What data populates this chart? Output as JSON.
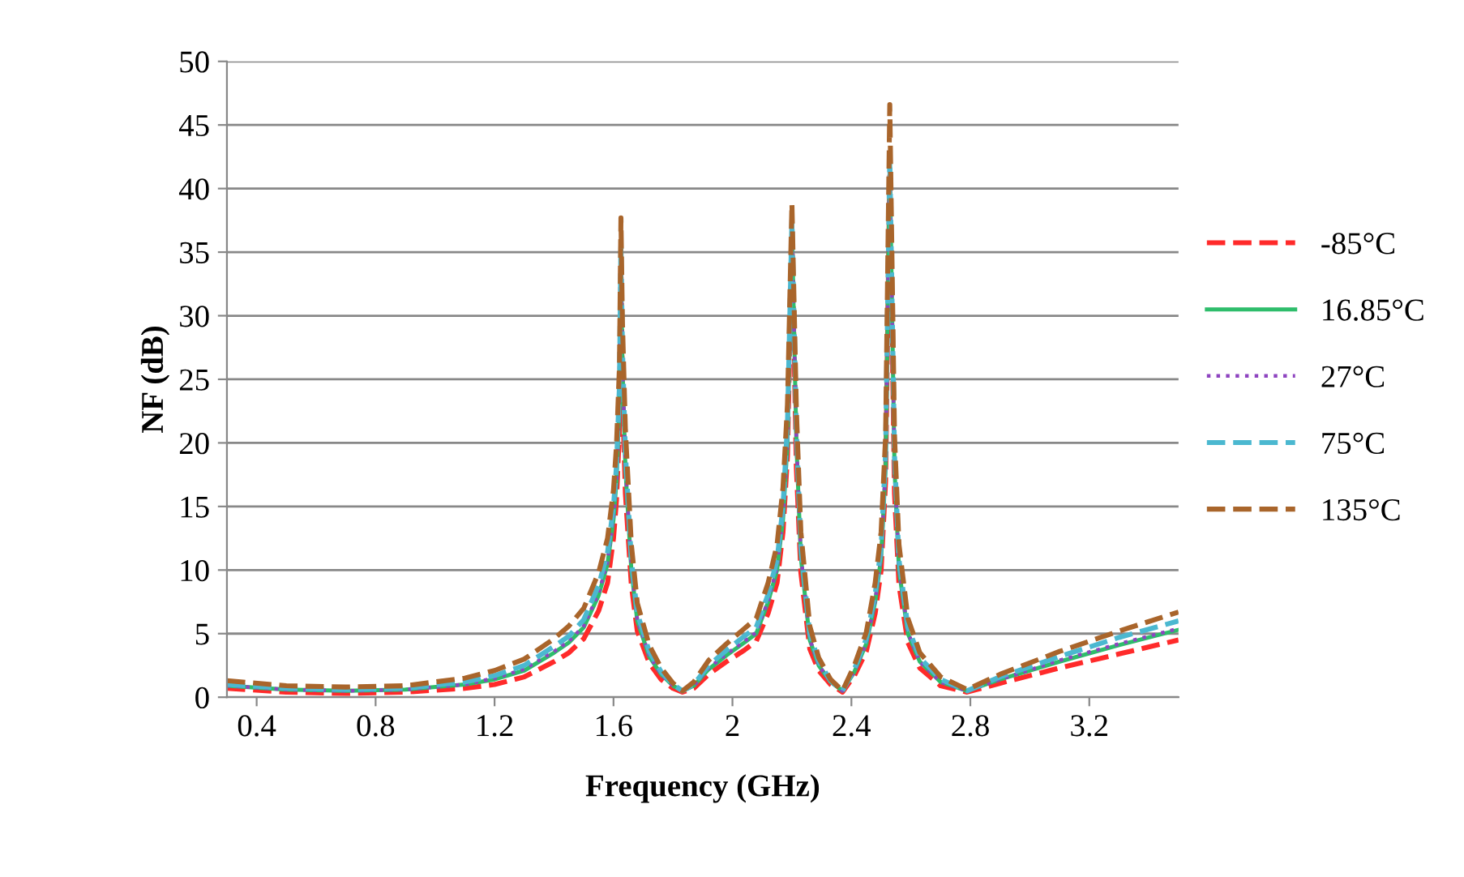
{
  "chart_data": {
    "type": "line",
    "xlabel": "Frequency (GHz)",
    "ylabel": "NF (dB)",
    "xlim": [
      0.3,
      3.5
    ],
    "xticks": [
      0.4,
      0.8,
      1.2,
      1.6,
      2,
      2.4,
      2.8,
      3.2
    ],
    "ylim": [
      0,
      50
    ],
    "yticks": [
      0,
      5,
      10,
      15,
      20,
      25,
      30,
      35,
      40,
      45,
      50
    ],
    "grid": "y",
    "legend": "right",
    "marker": "none",
    "x": [
      0.3,
      0.5,
      0.7,
      0.9,
      1.1,
      1.2,
      1.3,
      1.4,
      1.45,
      1.5,
      1.55,
      1.58,
      1.6,
      1.61,
      1.62,
      1.625,
      1.63,
      1.64,
      1.66,
      1.68,
      1.72,
      1.76,
      1.8,
      1.832,
      1.87,
      1.92,
      1.98,
      2.04,
      2.08,
      2.12,
      2.15,
      2.17,
      2.185,
      2.2,
      2.215,
      2.23,
      2.26,
      2.29,
      2.33,
      2.37,
      2.41,
      2.45,
      2.48,
      2.5,
      2.515,
      2.529,
      2.545,
      2.56,
      2.59,
      2.63,
      2.7,
      2.789,
      2.9,
      3.1,
      3.3,
      3.5
    ],
    "series": [
      {
        "name": "-85°C",
        "color": "#ff2a2a",
        "line_style": "dashed",
        "values": [
          0.7,
          0.4,
          0.3,
          0.4,
          0.7,
          1.0,
          1.6,
          2.8,
          3.5,
          4.6,
          6.8,
          9,
          12.5,
          15.5,
          21,
          34,
          24,
          16,
          8.8,
          5.2,
          2.7,
          1.4,
          0.7,
          0.4,
          0.7,
          1.8,
          2.8,
          3.7,
          4.4,
          6.6,
          9,
          13,
          19,
          36,
          18,
          9.8,
          3.8,
          2.1,
          1.0,
          0.4,
          1.7,
          3.6,
          6.6,
          10,
          17,
          41,
          16,
          8.8,
          4.3,
          2.3,
          0.9,
          0.4,
          1.1,
          2.3,
          3.4,
          4.5
        ]
      },
      {
        "name": "16.85°C",
        "color": "#2ebd6b",
        "line_style": "solid",
        "values": [
          0.9,
          0.6,
          0.5,
          0.6,
          1.0,
          1.4,
          2.1,
          3.5,
          4.3,
          5.5,
          8,
          10.5,
          14,
          17,
          23,
          35,
          26,
          18,
          10,
          6,
          3.2,
          1.8,
          0.9,
          0.5,
          0.9,
          2.2,
          3.3,
          4.3,
          5,
          7.5,
          10,
          14,
          20,
          37,
          20,
          11,
          4.5,
          2.5,
          1.2,
          0.5,
          2,
          4.2,
          7.5,
          11,
          18,
          42,
          18,
          10,
          5,
          2.8,
          1.2,
          0.5,
          1.4,
          2.8,
          4.1,
          5.3
        ]
      },
      {
        "name": "27°C",
        "color": "#8e44c0",
        "line_style": "dotted",
        "values": [
          0.9,
          0.6,
          0.5,
          0.6,
          1.0,
          1.5,
          2.2,
          3.6,
          4.4,
          5.6,
          8.2,
          10.7,
          14.2,
          17.3,
          23.5,
          35,
          26.5,
          18.3,
          10.2,
          6.1,
          3.3,
          1.8,
          0.9,
          0.5,
          0.9,
          2.3,
          3.4,
          4.4,
          5.1,
          7.6,
          10.2,
          14.3,
          20.5,
          37,
          20.3,
          11.2,
          4.6,
          2.5,
          1.2,
          0.5,
          2,
          4.3,
          7.6,
          11.2,
          18.3,
          42,
          18.3,
          10.2,
          5.1,
          2.8,
          1.2,
          0.5,
          1.4,
          2.9,
          4.2,
          5.4
        ]
      },
      {
        "name": "75°C",
        "color": "#4bb8d0",
        "line_style": "dashed",
        "values": [
          1.0,
          0.7,
          0.6,
          0.7,
          1.2,
          1.7,
          2.5,
          4.0,
          4.8,
          6.1,
          8.8,
          11.4,
          15,
          18.2,
          24.5,
          35.5,
          27.5,
          19.2,
          10.8,
          6.6,
          3.6,
          2.0,
          1.0,
          0.5,
          1.0,
          2.5,
          3.7,
          4.8,
          5.5,
          8.1,
          10.8,
          15,
          21.5,
          37.5,
          21,
          11.8,
          5.0,
          2.8,
          1.3,
          0.5,
          2.2,
          4.6,
          8.1,
          11.8,
          19.2,
          42.5,
          19,
          10.8,
          5.5,
          3.1,
          1.4,
          0.5,
          1.6,
          3.2,
          4.7,
          6.0
        ]
      },
      {
        "name": "135°C",
        "color": "#a9652b",
        "line_style": "dashed",
        "values": [
          1.3,
          0.9,
          0.8,
          0.9,
          1.5,
          2.1,
          3.0,
          4.6,
          5.6,
          7.0,
          9.8,
          12.5,
          16.3,
          19.8,
          26,
          37.7,
          29.5,
          21,
          12,
          7.4,
          4.1,
          2.3,
          1.1,
          0.5,
          1.2,
          2.9,
          4.2,
          5.4,
          6.2,
          9,
          12,
          16.5,
          23,
          38.8,
          22.5,
          13,
          5.6,
          3.1,
          1.4,
          0.5,
          2.5,
          5.1,
          9,
          13,
          20.5,
          46.6,
          20.5,
          12,
          6.2,
          3.5,
          1.6,
          0.6,
          1.8,
          3.6,
          5.2,
          6.7
        ]
      }
    ]
  }
}
